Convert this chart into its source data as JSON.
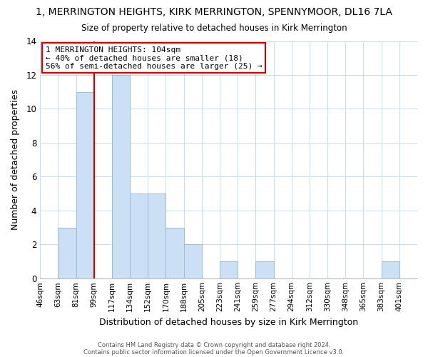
{
  "title": "1, MERRINGTON HEIGHTS, KIRK MERRINGTON, SPENNYMOOR, DL16 7LA",
  "subtitle": "Size of property relative to detached houses in Kirk Merrington",
  "xlabel": "Distribution of detached houses by size in Kirk Merrington",
  "ylabel": "Number of detached properties",
  "footer_line1": "Contains HM Land Registry data © Crown copyright and database right 2024.",
  "footer_line2": "Contains public sector information licensed under the Open Government Licence v3.0.",
  "bin_labels": [
    "46sqm",
    "63sqm",
    "81sqm",
    "99sqm",
    "117sqm",
    "134sqm",
    "152sqm",
    "170sqm",
    "188sqm",
    "205sqm",
    "223sqm",
    "241sqm",
    "259sqm",
    "277sqm",
    "294sqm",
    "312sqm",
    "330sqm",
    "348sqm",
    "365sqm",
    "383sqm",
    "401sqm"
  ],
  "bar_heights": [
    0,
    3,
    11,
    0,
    12,
    5,
    5,
    3,
    2,
    0,
    1,
    0,
    1,
    0,
    0,
    0,
    0,
    0,
    0,
    1,
    0
  ],
  "bar_color": "#cce0f5",
  "bar_edge_color": "#9bbdd4",
  "vline_x_index": 3,
  "vline_color": "#cc0000",
  "ylim": [
    0,
    14
  ],
  "yticks": [
    0,
    2,
    4,
    6,
    8,
    10,
    12,
    14
  ],
  "annotation_title": "1 MERRINGTON HEIGHTS: 104sqm",
  "annotation_line2": "← 40% of detached houses are smaller (18)",
  "annotation_line3": "56% of semi-detached houses are larger (25) →",
  "annotation_box_color": "#ffffff",
  "annotation_box_edge": "#cc0000",
  "background_color": "#ffffff",
  "grid_color": "#ccdcec"
}
